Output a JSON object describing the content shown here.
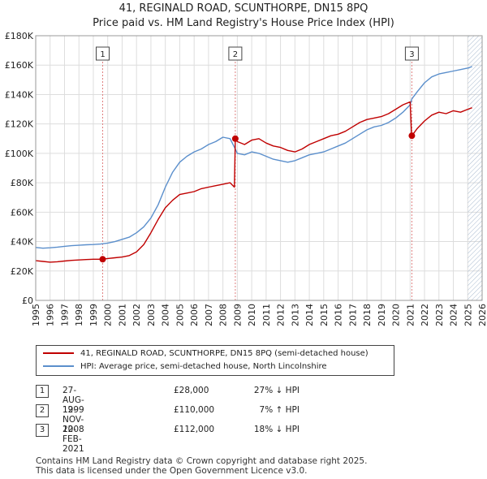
{
  "titles": {
    "line1": "41, REGINALD ROAD, SCUNTHORPE, DN15 8PQ",
    "line2": "Price paid vs. HM Land Registry's House Price Index (HPI)"
  },
  "colors": {
    "property": "#c00000",
    "hpi": "#5b8fcc",
    "marker": "#c00000",
    "hatch": "#aabbd0"
  },
  "chart_data": {
    "type": "line",
    "title": "41, REGINALD ROAD, SCUNTHORPE, DN15 8PQ — Price paid vs. HM Land Registry's House Price Index (HPI)",
    "xlabel": "",
    "ylabel": "",
    "xlim": [
      1995,
      2026
    ],
    "ylim": [
      0,
      180000
    ],
    "grid": true,
    "x_ticks": [
      "1995",
      "1996",
      "1997",
      "1998",
      "1999",
      "2000",
      "2001",
      "2002",
      "2003",
      "2004",
      "2005",
      "2006",
      "2007",
      "2008",
      "2009",
      "2010",
      "2011",
      "2012",
      "2013",
      "2014",
      "2015",
      "2016",
      "2017",
      "2018",
      "2019",
      "2020",
      "2021",
      "2022",
      "2023",
      "2024",
      "2025",
      "2026"
    ],
    "y_ticks": [
      {
        "value": 0,
        "label": "£0"
      },
      {
        "value": 20000,
        "label": "£20K"
      },
      {
        "value": 40000,
        "label": "£40K"
      },
      {
        "value": 60000,
        "label": "£60K"
      },
      {
        "value": 80000,
        "label": "£80K"
      },
      {
        "value": 100000,
        "label": "£100K"
      },
      {
        "value": 120000,
        "label": "£120K"
      },
      {
        "value": 140000,
        "label": "£140K"
      },
      {
        "value": 160000,
        "label": "£160K"
      },
      {
        "value": 180000,
        "label": "£180K"
      }
    ],
    "series": [
      {
        "name": "41, REGINALD ROAD, SCUNTHORPE, DN15 8PQ (semi-detached house)",
        "color": "#c00000",
        "x": [
          1995.0,
          1995.5,
          1996.0,
          1996.5,
          1997.0,
          1997.5,
          1998.0,
          1998.5,
          1999.0,
          1999.5,
          1999.65,
          2000.0,
          2000.5,
          2001.0,
          2001.5,
          2002.0,
          2002.5,
          2003.0,
          2003.5,
          2004.0,
          2004.5,
          2005.0,
          2005.5,
          2006.0,
          2006.5,
          2007.0,
          2007.5,
          2008.0,
          2008.5,
          2008.8,
          2008.86,
          2009.0,
          2009.5,
          2010.0,
          2010.5,
          2011.0,
          2011.5,
          2012.0,
          2012.5,
          2013.0,
          2013.5,
          2014.0,
          2014.5,
          2015.0,
          2015.5,
          2016.0,
          2016.5,
          2017.0,
          2017.5,
          2018.0,
          2018.5,
          2019.0,
          2019.5,
          2020.0,
          2020.5,
          2021.0,
          2021.1,
          2021.12,
          2021.5,
          2022.0,
          2022.5,
          2023.0,
          2023.5,
          2024.0,
          2024.5,
          2025.0,
          2025.3
        ],
        "values": [
          27000,
          26500,
          26000,
          26300,
          26800,
          27200,
          27500,
          27800,
          28000,
          28000,
          28000,
          28500,
          29000,
          29500,
          30500,
          33000,
          38000,
          46000,
          55000,
          63000,
          68000,
          72000,
          73000,
          74000,
          76000,
          77000,
          78000,
          79000,
          80000,
          77000,
          110000,
          108000,
          106000,
          109000,
          110000,
          107000,
          105000,
          104000,
          102000,
          101000,
          103000,
          106000,
          108000,
          110000,
          112000,
          113000,
          115000,
          118000,
          121000,
          123000,
          124000,
          125000,
          127000,
          130000,
          133000,
          135000,
          112000,
          112000,
          117000,
          122000,
          126000,
          128000,
          127000,
          129000,
          128000,
          130000,
          131000
        ]
      },
      {
        "name": "HPI: Average price, semi-detached house, North Lincolnshire",
        "color": "#5b8fcc",
        "x": [
          1995.0,
          1995.5,
          1996.0,
          1996.5,
          1997.0,
          1997.5,
          1998.0,
          1998.5,
          1999.0,
          1999.5,
          2000.0,
          2000.5,
          2001.0,
          2001.5,
          2002.0,
          2002.5,
          2003.0,
          2003.5,
          2004.0,
          2004.5,
          2005.0,
          2005.5,
          2006.0,
          2006.5,
          2007.0,
          2007.5,
          2008.0,
          2008.5,
          2008.86,
          2009.0,
          2009.5,
          2010.0,
          2010.5,
          2011.0,
          2011.5,
          2012.0,
          2012.5,
          2013.0,
          2013.5,
          2014.0,
          2014.5,
          2015.0,
          2015.5,
          2016.0,
          2016.5,
          2017.0,
          2017.5,
          2018.0,
          2018.5,
          2019.0,
          2019.5,
          2020.0,
          2020.5,
          2021.0,
          2021.12,
          2021.5,
          2022.0,
          2022.5,
          2023.0,
          2023.5,
          2024.0,
          2024.5,
          2025.0,
          2025.3
        ],
        "values": [
          36000,
          35500,
          35800,
          36200,
          36800,
          37200,
          37500,
          37800,
          38000,
          38300,
          39000,
          40000,
          41500,
          43000,
          46000,
          50000,
          56000,
          65000,
          77000,
          87000,
          94000,
          98000,
          101000,
          103000,
          106000,
          108000,
          111000,
          110000,
          103000,
          100000,
          99000,
          101000,
          100000,
          98000,
          96000,
          95000,
          94000,
          95000,
          97000,
          99000,
          100000,
          101000,
          103000,
          105000,
          107000,
          110000,
          113000,
          116000,
          118000,
          119000,
          121000,
          124000,
          128000,
          133000,
          137000,
          142000,
          148000,
          152000,
          154000,
          155000,
          156000,
          157000,
          158000,
          159000
        ]
      }
    ],
    "sales": [
      {
        "id": "1",
        "x": 1999.65,
        "value": 28000
      },
      {
        "id": "2",
        "x": 2008.86,
        "value": 110000
      },
      {
        "id": "3",
        "x": 2021.12,
        "value": 112000
      }
    ]
  },
  "legend": {
    "property": "41, REGINALD ROAD, SCUNTHORPE, DN15 8PQ (semi-detached house)",
    "hpi": "HPI: Average price, semi-detached house, North Lincolnshire"
  },
  "sales_table": [
    {
      "num": "1",
      "date": "27-AUG-1999",
      "price": "£28,000",
      "hpi": "27% ↓ HPI"
    },
    {
      "num": "2",
      "date": "12-NOV-2008",
      "price": "£110,000",
      "hpi": "7% ↑ HPI"
    },
    {
      "num": "3",
      "date": "12-FEB-2021",
      "price": "£112,000",
      "hpi": "18% ↓ HPI"
    }
  ],
  "footer": {
    "line1": "Contains HM Land Registry data © Crown copyright and database right 2025.",
    "line2": "This data is licensed under the Open Government Licence v3.0."
  }
}
